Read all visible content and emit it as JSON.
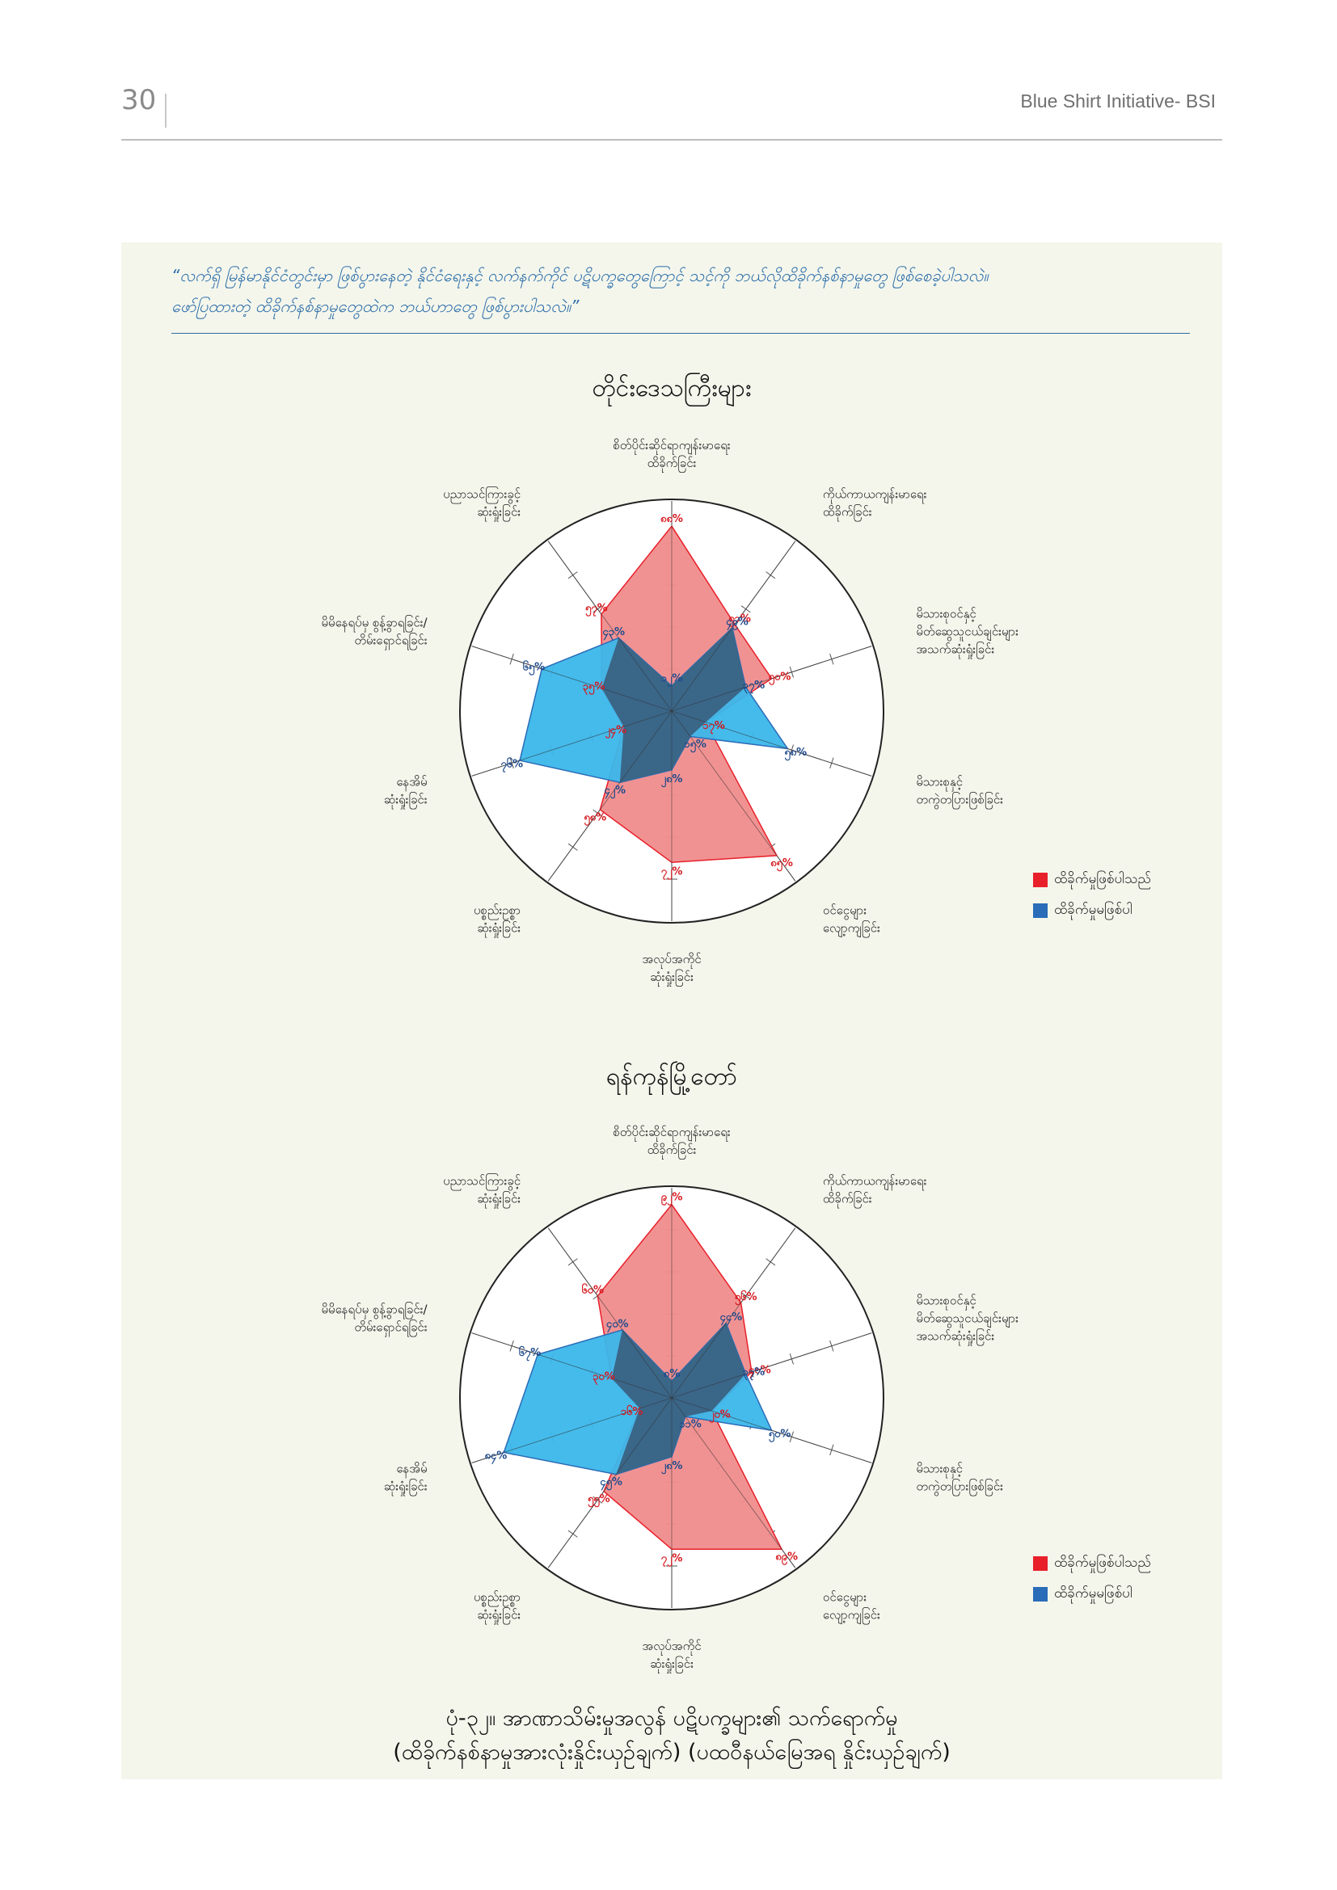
{
  "header": {
    "page_number": "30",
    "publication": "Blue Shirt Initiative- BSI"
  },
  "question": {
    "line1": "“လက်ရှိ မြန်မာနိုင်ငံတွင်းမှာ ဖြစ်ပွားနေတဲ့ နိုင်ငံရေးနှင့် လက်နက်ကိုင် ပဋိပက္ခတွေကြောင့် သင့်ကို ဘယ်လိုထိခိုက်နစ်နာမှုတွေ ဖြစ်စေခဲ့ပါသလဲ။",
    "line2": "ဖော်ပြထားတဲ့ ထိခိုက်နစ်နာမှုတွေထဲက ဘယ်ဟာတွေ ဖြစ်ပွားပါသလဲ။”"
  },
  "colors": {
    "affected": "#e8202a",
    "not_affected": "#2a6cb8",
    "affected_fill": "#f08c8c",
    "not_affected_fill": "#3bb7ea",
    "overlap_fill": "#3a6688",
    "value_text_affected": "#d7191f",
    "value_text_not_affected": "#1f4b8c"
  },
  "chart_data": [
    {
      "type": "radar",
      "title": "တိုင်းဒေသကြီးများ",
      "categories": [
        "စိတ်ပိုင်းဆိုင်ရာကျန်းမာရေး ထိခိုက်ခြင်း",
        "ကိုယ်ကာယကျန်းမာရေး ထိခိုက်ခြင်း",
        "မိသားစုဝင်နှင့် မိတ်ဆွေသူငယ်ချင်းများ အသက်ဆုံးရှုံးခြင်း",
        "မိသားစုနှင့် တကွဲတပြားဖြစ်ခြင်း",
        "ဝင်ငွေများ လျော့ကျခြင်း",
        "အလုပ်အကိုင် ဆုံးရှုံးခြင်း",
        "ပစ္စည်းဥစ္စာ ဆုံးရှုံးခြင်း",
        "နေအိမ် ဆုံးရှုံးခြင်း",
        "မိမိနေရပ်မှ စွန့်ခွာရခြင်း/ တိမ်းရှောင်ရခြင်း",
        "ပညာသင်ကြားခွင့် ဆုံးရှုံးခြင်း"
      ],
      "series": [
        {
          "name": "ထိခိုက်မှုဖြစ်ပါသည်",
          "values": [
            88,
            51,
            50,
            17,
            85,
            72,
            58,
            24,
            35,
            57
          ],
          "labels": [
            "၈၈%",
            "၅၁%",
            "၅၀%",
            "၁၇%",
            "၈၅%",
            "၇၂%",
            "၅၈%",
            "၂၄%",
            "၃၅%",
            "၅၇%"
          ]
        },
        {
          "name": "ထိခိုက်မှုမဖြစ်ပါ",
          "values": [
            12,
            49,
            37,
            58,
            15,
            28,
            42,
            76,
            65,
            43
          ],
          "labels": [
            "၁၂%",
            "၄၉%",
            "၃၇%",
            "၅၈%",
            "၁၅%",
            "၂၈%",
            "၄၂%",
            "၇၆%",
            "၆၅%",
            "၄၃%"
          ]
        }
      ],
      "rlim": [
        0,
        100
      ]
    },
    {
      "type": "radar",
      "title": "ရန်ကုန်မြို့တော်",
      "categories": [
        "စိတ်ပိုင်းဆိုင်ရာကျန်းမာရေး ထိခိုက်ခြင်း",
        "ကိုယ်ကာယကျန်းမာရေး ထိခိုက်ခြင်း",
        "မိသားစုဝင်နှင့် မိတ်ဆွေသူငယ်ချင်းများ အသက်ဆုံးရှုံးခြင်း",
        "မိသားစုနှင့် တကွဲတပြားဖြစ်ခြင်း",
        "ဝင်ငွေများ လျော့ကျခြင်း",
        "အလုပ်အကိုင် ဆုံးရှုံးခြင်း",
        "ပစ္စည်းဥစ္စာ ဆုံးရှုံးခြင်း",
        "နေအိမ် ဆုံးရှုံးခြင်း",
        "မိမိနေရပ်မှ စွန့်ခွာရခြင်း/ တိမ်းရှောင်ရခြင်း",
        "ပညာသင်ကြားခွင့် ဆုံးရှုံးခြင်း"
      ],
      "series": [
        {
          "name": "ထိခိုက်မှုဖြစ်ပါသည်",
          "values": [
            92,
            56,
            40,
            20,
            89,
            72,
            55,
            16,
            30,
            60
          ],
          "labels": [
            "၉၂%",
            "၅၆%",
            "၄၀%",
            "၂၀%",
            "၈၉%",
            "၇၂%",
            "၅၅%",
            "၁၆%",
            "၃၀%",
            "၆၀%"
          ]
        },
        {
          "name": "ထိခိုက်မှုမဖြစ်ပါ",
          "values": [
            8,
            44,
            37,
            50,
            11,
            28,
            45,
            84,
            67,
            40
          ],
          "labels": [
            "၈%",
            "၄၄%",
            "၃၇%",
            "၅၀%",
            "၁၁%",
            "၂၈%",
            "၄၅%",
            "၈၄%",
            "၆၇%",
            "၄၀%"
          ]
        }
      ],
      "rlim": [
        0,
        100
      ]
    }
  ],
  "caption": {
    "line1": "ပုံ-၃၂။ အာဏာသိမ်းမှုအလွန် ပဋိပက္ခများ၏ သက်ရောက်မှု",
    "line2": "(ထိခိုက်နစ်နာမှုအားလုံးနှိုင်းယှဉ်ချက်) (ပထဝီနယ်မြေအရ နှိုင်းယှဉ်ချက်)"
  }
}
